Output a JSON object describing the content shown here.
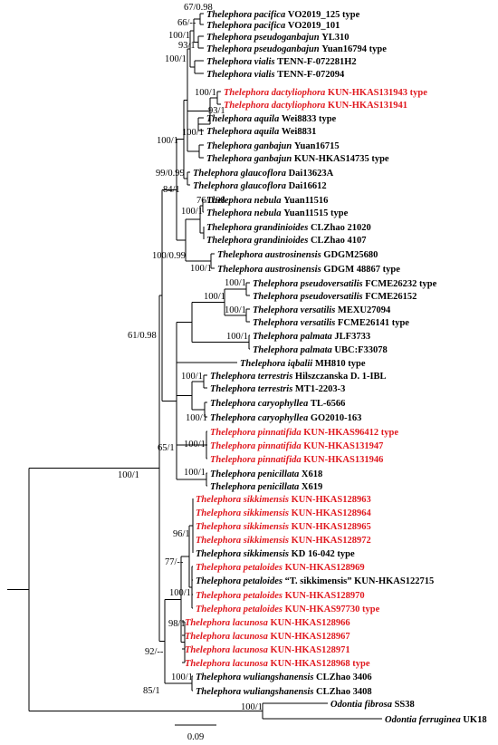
{
  "colors": {
    "black": "#000000",
    "new_taxon": "#e0191f"
  },
  "scale_bar": {
    "label": "0.09"
  },
  "taxa": [
    {
      "id": "t1",
      "genus": "Thelephora",
      "species": "pacifica",
      "rest": "VO2019_125 type",
      "color": "black"
    },
    {
      "id": "t2",
      "genus": "Thelephora",
      "species": "pacifica",
      "rest": "VO2019_101",
      "color": "black"
    },
    {
      "id": "t3",
      "genus": "Thelephora",
      "species": "pseudoganbajun",
      "rest": "YL310",
      "color": "black"
    },
    {
      "id": "t4",
      "genus": "Thelephora",
      "species": "pseudoganbajun",
      "rest": "Yuan16794 type",
      "color": "black"
    },
    {
      "id": "t5",
      "genus": "Thelephora",
      "species": "vialis",
      "rest": "TENN-F-072281H2",
      "color": "black"
    },
    {
      "id": "t6",
      "genus": "Thelephora",
      "species": "vialis",
      "rest": "TENN-F-072094",
      "color": "black"
    },
    {
      "id": "t7",
      "genus": "Thelephora",
      "species": "dactyliophora",
      "rest": "KUN-HKAS131943 type",
      "color": "red"
    },
    {
      "id": "t8",
      "genus": "Thelephora",
      "species": "dactyliophora",
      "rest": "KUN-HKAS131941",
      "color": "red"
    },
    {
      "id": "t9",
      "genus": "Thelephora",
      "species": "aquila",
      "rest": "Wei8833 type",
      "color": "black"
    },
    {
      "id": "t10",
      "genus": "Thelephora",
      "species": "aquila",
      "rest": "Wei8831",
      "color": "black"
    },
    {
      "id": "t11",
      "genus": "Thelephora",
      "species": "ganbajun",
      "rest": "Yuan16715",
      "color": "black"
    },
    {
      "id": "t12",
      "genus": "Thelephora",
      "species": "ganbajun",
      "rest": "KUN-HKAS14735 type",
      "color": "black"
    },
    {
      "id": "t13",
      "genus": "Thelephora",
      "species": "glaucoflora",
      "rest": "Dai13623A",
      "color": "black"
    },
    {
      "id": "t14",
      "genus": "Thelephora",
      "species": "glaucoflora",
      "rest": "Dai16612",
      "color": "black"
    },
    {
      "id": "t15",
      "genus": "Thelephora",
      "species": "nebula",
      "rest": "Yuan11516",
      "color": "black"
    },
    {
      "id": "t16",
      "genus": "Thelephora",
      "species": "nebula",
      "rest": "Yuan11515 type",
      "color": "black"
    },
    {
      "id": "t17",
      "genus": "Thelephora",
      "species": "grandinioides",
      "rest": "CLZhao 21020",
      "color": "black"
    },
    {
      "id": "t18",
      "genus": "Thelephora",
      "species": "grandinioides",
      "rest": "CLZhao 4107",
      "color": "black"
    },
    {
      "id": "t19",
      "genus": "Thelephora",
      "species": "austrosinensis",
      "rest": "GDGM25680",
      "color": "black"
    },
    {
      "id": "t20",
      "genus": "Thelephora",
      "species": "austrosinensis",
      "rest": "GDGM 48867 type",
      "color": "black"
    },
    {
      "id": "t21",
      "genus": "Thelephora",
      "species": "pseudoversatilis",
      "rest": "FCME26232 type",
      "color": "black"
    },
    {
      "id": "t22",
      "genus": "Thelephora",
      "species": "pseudoversatilis",
      "rest": "FCME26152",
      "color": "black"
    },
    {
      "id": "t23",
      "genus": "Thelephora",
      "species": "versatilis",
      "rest": "MEXU27094",
      "color": "black"
    },
    {
      "id": "t24",
      "genus": "Thelephora",
      "species": "versatilis",
      "rest": "FCME26141 type",
      "color": "black"
    },
    {
      "id": "t25",
      "genus": "Thelephora",
      "species": "palmata",
      "rest": "JLF3733",
      "color": "black"
    },
    {
      "id": "t26",
      "genus": "Thelephora",
      "species": "palmata",
      "rest": "UBC:F33078",
      "color": "black"
    },
    {
      "id": "t27",
      "genus": "Thelephora",
      "species": "iqbalii",
      "rest": "MH810 type",
      "color": "black"
    },
    {
      "id": "t28",
      "genus": "Thelephora",
      "species": "terrestris",
      "rest": "Hilszczanska D. 1-IBL",
      "color": "black"
    },
    {
      "id": "t29",
      "genus": "Thelephora",
      "species": "terrestris",
      "rest": "MT1-2203-3",
      "color": "black"
    },
    {
      "id": "t30",
      "genus": "Thelephora",
      "species": "caryophyllea",
      "rest": "TL-6566",
      "color": "black"
    },
    {
      "id": "t31",
      "genus": "Thelephora",
      "species": "caryophyllea",
      "rest": "GO2010-163",
      "color": "black"
    },
    {
      "id": "t32",
      "genus": "Thelephora",
      "species": "pinnatifida",
      "rest": "KUN-HKAS96412 type",
      "color": "red"
    },
    {
      "id": "t33",
      "genus": "Thelephora",
      "species": "pinnatifida",
      "rest": "KUN-HKAS131947",
      "color": "red"
    },
    {
      "id": "t34",
      "genus": "Thelephora",
      "species": "pinnatifida",
      "rest": "KUN-HKAS131946",
      "color": "red"
    },
    {
      "id": "t35",
      "genus": "Thelephora",
      "species": "penicillata",
      "rest": "X618",
      "color": "black"
    },
    {
      "id": "t36",
      "genus": "Thelephora",
      "species": "penicillata",
      "rest": "X619",
      "color": "black"
    },
    {
      "id": "t37",
      "genus": "Thelephora",
      "species": "sikkimensis",
      "rest": "KUN-HKAS128963",
      "color": "red"
    },
    {
      "id": "t38",
      "genus": "Thelephora",
      "species": "sikkimensis",
      "rest": "KUN-HKAS128964",
      "color": "red"
    },
    {
      "id": "t39",
      "genus": "Thelephora",
      "species": "sikkimensis",
      "rest": "KUN-HKAS128965",
      "color": "red"
    },
    {
      "id": "t40",
      "genus": "Thelephora",
      "species": "sikkimensis",
      "rest": "KUN-HKAS128972",
      "color": "red"
    },
    {
      "id": "t41",
      "genus": "Thelephora",
      "species": "sikkimensis",
      "rest": "KD 16-042 type",
      "color": "black"
    },
    {
      "id": "t42",
      "genus": "Thelephora",
      "species": "petaloides",
      "rest": "KUN-HKAS128969",
      "color": "red"
    },
    {
      "id": "t43",
      "genus": "Thelephora",
      "species": "petaloides",
      "rest": "“T. sikkimensis” KUN-HKAS122715",
      "color": "black"
    },
    {
      "id": "t44",
      "genus": "Thelephora",
      "species": "petaloides",
      "rest": "KUN-HKAS128970",
      "color": "red"
    },
    {
      "id": "t45",
      "genus": "Thelephora",
      "species": "petaloides",
      "rest": "KUN-HKAS97730 type",
      "color": "red"
    },
    {
      "id": "t46",
      "genus": "Thelephora",
      "species": "lacunosa",
      "rest": "KUN-HKAS128966",
      "color": "red"
    },
    {
      "id": "t47",
      "genus": "Thelephora",
      "species": "lacunosa",
      "rest": "KUN-HKAS128967",
      "color": "red"
    },
    {
      "id": "t48",
      "genus": "Thelephora",
      "species": "lacunosa",
      "rest": "KUN-HKAS128971",
      "color": "red"
    },
    {
      "id": "t49",
      "genus": "Thelephora",
      "species": "lacunosa",
      "rest": "KUN-HKAS128968 type",
      "color": "red"
    },
    {
      "id": "t50",
      "genus": "Thelephora",
      "species": "wuliangshanensis",
      "rest": "CLZhao 3406",
      "color": "black"
    },
    {
      "id": "t51",
      "genus": "Thelephora",
      "species": "wuliangshanensis",
      "rest": "CLZhao 3408",
      "color": "black"
    },
    {
      "id": "t52",
      "genus": "Odontia",
      "species": "fibrosa",
      "rest": "SS38",
      "color": "black"
    },
    {
      "id": "t53",
      "genus": "Odontia",
      "species": "ferruginea",
      "rest": "UK18",
      "color": "black"
    }
  ],
  "supports": [
    {
      "id": "s1",
      "text": "67/0.98"
    },
    {
      "id": "s2",
      "text": "66/--"
    },
    {
      "id": "s3",
      "text": "100/1"
    },
    {
      "id": "s4",
      "text": "93/1"
    },
    {
      "id": "s5",
      "text": "100/1"
    },
    {
      "id": "s6",
      "text": "100/1"
    },
    {
      "id": "s7",
      "text": "93/1"
    },
    {
      "id": "s8",
      "text": "100/1"
    },
    {
      "id": "s9",
      "text": "100/1"
    },
    {
      "id": "s10",
      "text": "99/0.99"
    },
    {
      "id": "s11",
      "text": "84/1"
    },
    {
      "id": "s12",
      "text": "76/0.98"
    },
    {
      "id": "s13",
      "text": "100/1"
    },
    {
      "id": "s14",
      "text": "100/0.99"
    },
    {
      "id": "s15",
      "text": "100/1"
    },
    {
      "id": "s16",
      "text": "100/1"
    },
    {
      "id": "s17",
      "text": "100/1"
    },
    {
      "id": "s18",
      "text": "100/1"
    },
    {
      "id": "s19",
      "text": "100/1"
    },
    {
      "id": "s20",
      "text": "61/0.98"
    },
    {
      "id": "s21",
      "text": "100/1"
    },
    {
      "id": "s22",
      "text": "100/1"
    },
    {
      "id": "s23",
      "text": "100/1"
    },
    {
      "id": "s24",
      "text": "65/1"
    },
    {
      "id": "s25",
      "text": "100/1"
    },
    {
      "id": "s26",
      "text": "100/1"
    },
    {
      "id": "s27",
      "text": "96/1"
    },
    {
      "id": "s28",
      "text": "77/--"
    },
    {
      "id": "s29",
      "text": "100/1"
    },
    {
      "id": "s30",
      "text": "98/1"
    },
    {
      "id": "s31",
      "text": "92/--"
    },
    {
      "id": "s32",
      "text": "85/1"
    },
    {
      "id": "s33",
      "text": "100/1"
    },
    {
      "id": "s34",
      "text": "100/1"
    }
  ]
}
